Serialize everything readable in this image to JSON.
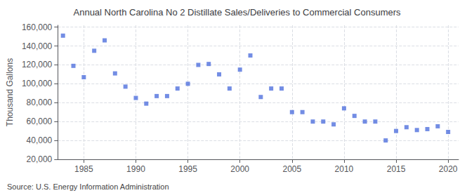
{
  "chart_data": {
    "type": "scatter",
    "title": "Annual North Carolina No 2 Distillate Sales/Deliveries to Commercial Consumers",
    "ylabel": "Thousand Gallons",
    "annotations": [
      "Source: U.S. Energy Information Administration"
    ],
    "marker": "square",
    "x": [
      1983,
      1984,
      1985,
      1986,
      1987,
      1988,
      1989,
      1990,
      1991,
      1992,
      1993,
      1994,
      1995,
      1996,
      1997,
      1998,
      1999,
      2000,
      2001,
      2002,
      2003,
      2004,
      2005,
      2006,
      2007,
      2008,
      2009,
      2010,
      2011,
      2012,
      2013,
      2014,
      2015,
      2016,
      2017,
      2018,
      2019,
      2020
    ],
    "values": [
      151000,
      119000,
      107000,
      135000,
      146000,
      111000,
      97000,
      85000,
      79000,
      87000,
      87000,
      95000,
      100000,
      120000,
      121000,
      110000,
      95000,
      115000,
      130000,
      86000,
      95000,
      95000,
      70000,
      70000,
      60000,
      60000,
      57000,
      74000,
      66000,
      60000,
      60000,
      40000,
      50000,
      54000,
      51000,
      52000,
      55000,
      49000
    ],
    "xlim": [
      1982.5,
      2021
    ],
    "ylim": [
      20000,
      162000
    ],
    "xticks": [
      1985,
      1990,
      1995,
      2000,
      2005,
      2010,
      2015,
      2020
    ],
    "yticks": [
      {
        "value": 20000,
        "label": "20,000"
      },
      {
        "value": 40000,
        "label": "40,000"
      },
      {
        "value": 60000,
        "label": "60,000"
      },
      {
        "value": 80000,
        "label": "80,000"
      },
      {
        "value": 100000,
        "label": "100,000"
      },
      {
        "value": 120000,
        "label": "120,000"
      },
      {
        "value": 140000,
        "label": "140,000"
      },
      {
        "value": 160000,
        "label": "160,000"
      }
    ],
    "grid": true
  }
}
